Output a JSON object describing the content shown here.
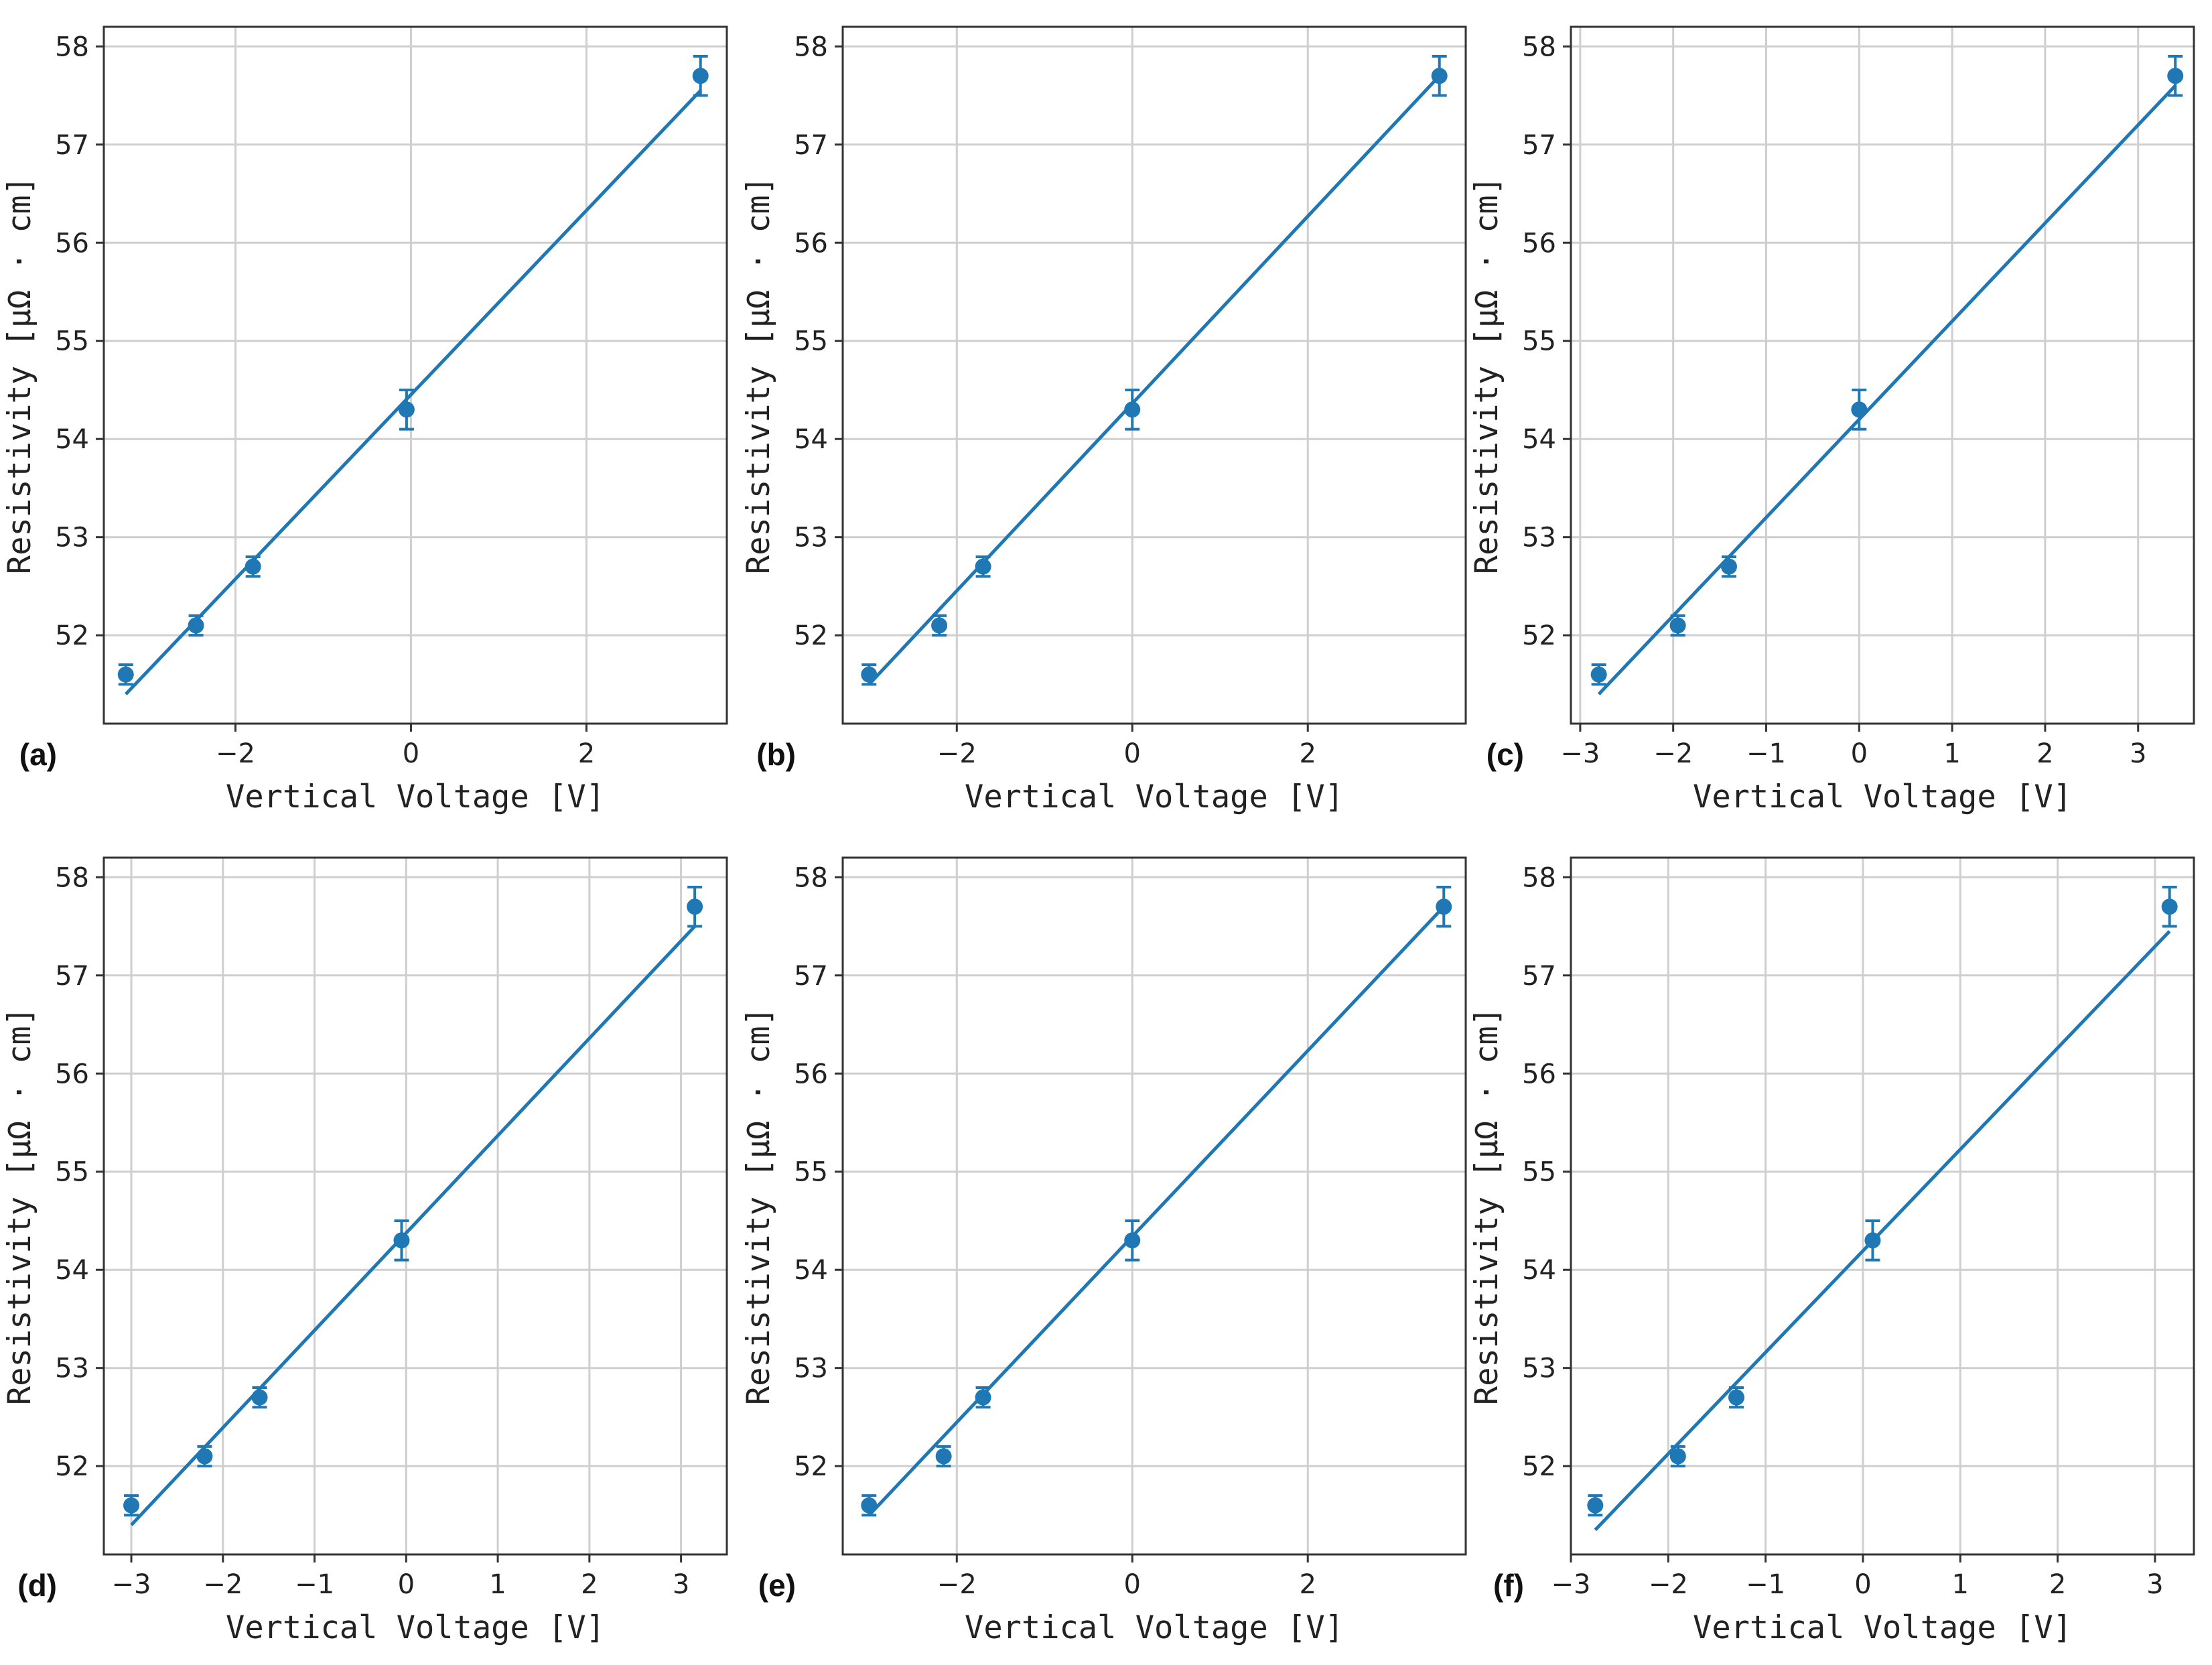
{
  "chart_data": [
    {
      "type": "scatter",
      "panel_label": "(a)",
      "xlabel": "Vertical Voltage [V]",
      "ylabel": "Resistivity [μΩ · cm]",
      "xlim": [
        -3.5,
        3.6
      ],
      "ylim": [
        51.1,
        58.2
      ],
      "xticks": [
        -2,
        0,
        2
      ],
      "xtick_labels": [
        "−2",
        "0",
        "2"
      ],
      "yticks": [
        52,
        53,
        54,
        55,
        56,
        57,
        58
      ],
      "ytick_labels": [
        "52",
        "53",
        "54",
        "55",
        "56",
        "57",
        "58"
      ],
      "grid": true,
      "color": "#1f77b4",
      "x": [
        -3.25,
        -2.45,
        -1.8,
        -0.05,
        3.3
      ],
      "y": [
        51.6,
        52.1,
        52.7,
        54.3,
        57.7
      ],
      "yerr": [
        0.1,
        0.1,
        0.1,
        0.2,
        0.2
      ],
      "fit": {
        "x": [
          -3.25,
          3.3
        ],
        "y": [
          51.4,
          57.55
        ]
      }
    },
    {
      "type": "scatter",
      "panel_label": "(b)",
      "xlabel": "Vertical Voltage [V]",
      "ylabel": "Resistivity [μΩ · cm]",
      "xlim": [
        -3.3,
        3.8
      ],
      "ylim": [
        51.1,
        58.2
      ],
      "xticks": [
        -2,
        0,
        2
      ],
      "xtick_labels": [
        "−2",
        "0",
        "2"
      ],
      "yticks": [
        52,
        53,
        54,
        55,
        56,
        57,
        58
      ],
      "ytick_labels": [
        "52",
        "53",
        "54",
        "55",
        "56",
        "57",
        "58"
      ],
      "grid": true,
      "color": "#1f77b4",
      "x": [
        -3.0,
        -2.2,
        -1.7,
        0.0,
        3.5
      ],
      "y": [
        51.6,
        52.1,
        52.7,
        54.3,
        57.7
      ],
      "yerr": [
        0.1,
        0.1,
        0.1,
        0.2,
        0.2
      ],
      "fit": {
        "x": [
          -3.0,
          3.5
        ],
        "y": [
          51.5,
          57.7
        ]
      }
    },
    {
      "type": "scatter",
      "panel_label": "(c)",
      "xlabel": "Vertical Voltage [V]",
      "ylabel": "Resistivity [μΩ · cm]",
      "xlim": [
        -3.1,
        3.6
      ],
      "ylim": [
        51.1,
        58.2
      ],
      "xticks": [
        -3,
        -2,
        -1,
        0,
        1,
        2,
        3
      ],
      "xtick_labels": [
        "−3",
        "−2",
        "−1",
        "0",
        "1",
        "2",
        "3"
      ],
      "yticks": [
        52,
        53,
        54,
        55,
        56,
        57,
        58
      ],
      "ytick_labels": [
        "52",
        "53",
        "54",
        "55",
        "56",
        "57",
        "58"
      ],
      "grid": true,
      "color": "#1f77b4",
      "x": [
        -2.8,
        -1.95,
        -1.4,
        0.0,
        3.4
      ],
      "y": [
        51.6,
        52.1,
        52.7,
        54.3,
        57.7
      ],
      "yerr": [
        0.1,
        0.1,
        0.1,
        0.2,
        0.2
      ],
      "fit": {
        "x": [
          -2.8,
          3.4
        ],
        "y": [
          51.4,
          57.6
        ]
      }
    },
    {
      "type": "scatter",
      "panel_label": "(d)",
      "xlabel": "Vertical Voltage [V]",
      "ylabel": "Resistivity [μΩ · cm]",
      "xlim": [
        -3.3,
        3.5
      ],
      "ylim": [
        51.1,
        58.2
      ],
      "xticks": [
        -3,
        -2,
        -1,
        0,
        1,
        2,
        3
      ],
      "xtick_labels": [
        "−3",
        "−2",
        "−1",
        "0",
        "1",
        "2",
        "3"
      ],
      "yticks": [
        52,
        53,
        54,
        55,
        56,
        57,
        58
      ],
      "ytick_labels": [
        "52",
        "53",
        "54",
        "55",
        "56",
        "57",
        "58"
      ],
      "grid": true,
      "color": "#1f77b4",
      "x": [
        -3.0,
        -2.2,
        -1.6,
        -0.05,
        3.15
      ],
      "y": [
        51.6,
        52.1,
        52.7,
        54.3,
        57.7
      ],
      "yerr": [
        0.1,
        0.1,
        0.1,
        0.2,
        0.2
      ],
      "fit": {
        "x": [
          -3.0,
          3.15
        ],
        "y": [
          51.4,
          57.5
        ]
      }
    },
    {
      "type": "scatter",
      "panel_label": "(e)",
      "xlabel": "Vertical Voltage [V]",
      "ylabel": "Resistivity [μΩ · cm]",
      "xlim": [
        -3.3,
        3.8
      ],
      "ylim": [
        51.1,
        58.2
      ],
      "xticks": [
        -2,
        0,
        2
      ],
      "xtick_labels": [
        "−2",
        "0",
        "2"
      ],
      "yticks": [
        52,
        53,
        54,
        55,
        56,
        57,
        58
      ],
      "ytick_labels": [
        "52",
        "53",
        "54",
        "55",
        "56",
        "57",
        "58"
      ],
      "grid": true,
      "color": "#1f77b4",
      "x": [
        -3.0,
        -2.15,
        -1.7,
        0.0,
        3.55
      ],
      "y": [
        51.6,
        52.1,
        52.7,
        54.3,
        57.7
      ],
      "yerr": [
        0.1,
        0.1,
        0.1,
        0.2,
        0.2
      ],
      "fit": {
        "x": [
          -3.0,
          3.55
        ],
        "y": [
          51.5,
          57.7
        ]
      }
    },
    {
      "type": "scatter",
      "panel_label": "(f)",
      "xlabel": "Vertical Voltage [V]",
      "ylabel": "Resistivity [μΩ · cm]",
      "xlim": [
        -3.0,
        3.4
      ],
      "ylim": [
        51.1,
        58.2
      ],
      "xticks": [
        -3,
        -2,
        -1,
        0,
        1,
        2,
        3
      ],
      "xtick_labels": [
        "−3",
        "−2",
        "−1",
        "0",
        "1",
        "2",
        "3"
      ],
      "yticks": [
        52,
        53,
        54,
        55,
        56,
        57,
        58
      ],
      "ytick_labels": [
        "52",
        "53",
        "54",
        "55",
        "56",
        "57",
        "58"
      ],
      "grid": true,
      "color": "#1f77b4",
      "x": [
        -2.75,
        -1.9,
        -1.3,
        0.1,
        3.15
      ],
      "y": [
        51.6,
        52.1,
        52.7,
        54.3,
        57.7
      ],
      "yerr": [
        0.1,
        0.1,
        0.1,
        0.2,
        0.2
      ],
      "fit": {
        "x": [
          -2.75,
          3.15
        ],
        "y": [
          51.35,
          57.45
        ]
      }
    }
  ]
}
